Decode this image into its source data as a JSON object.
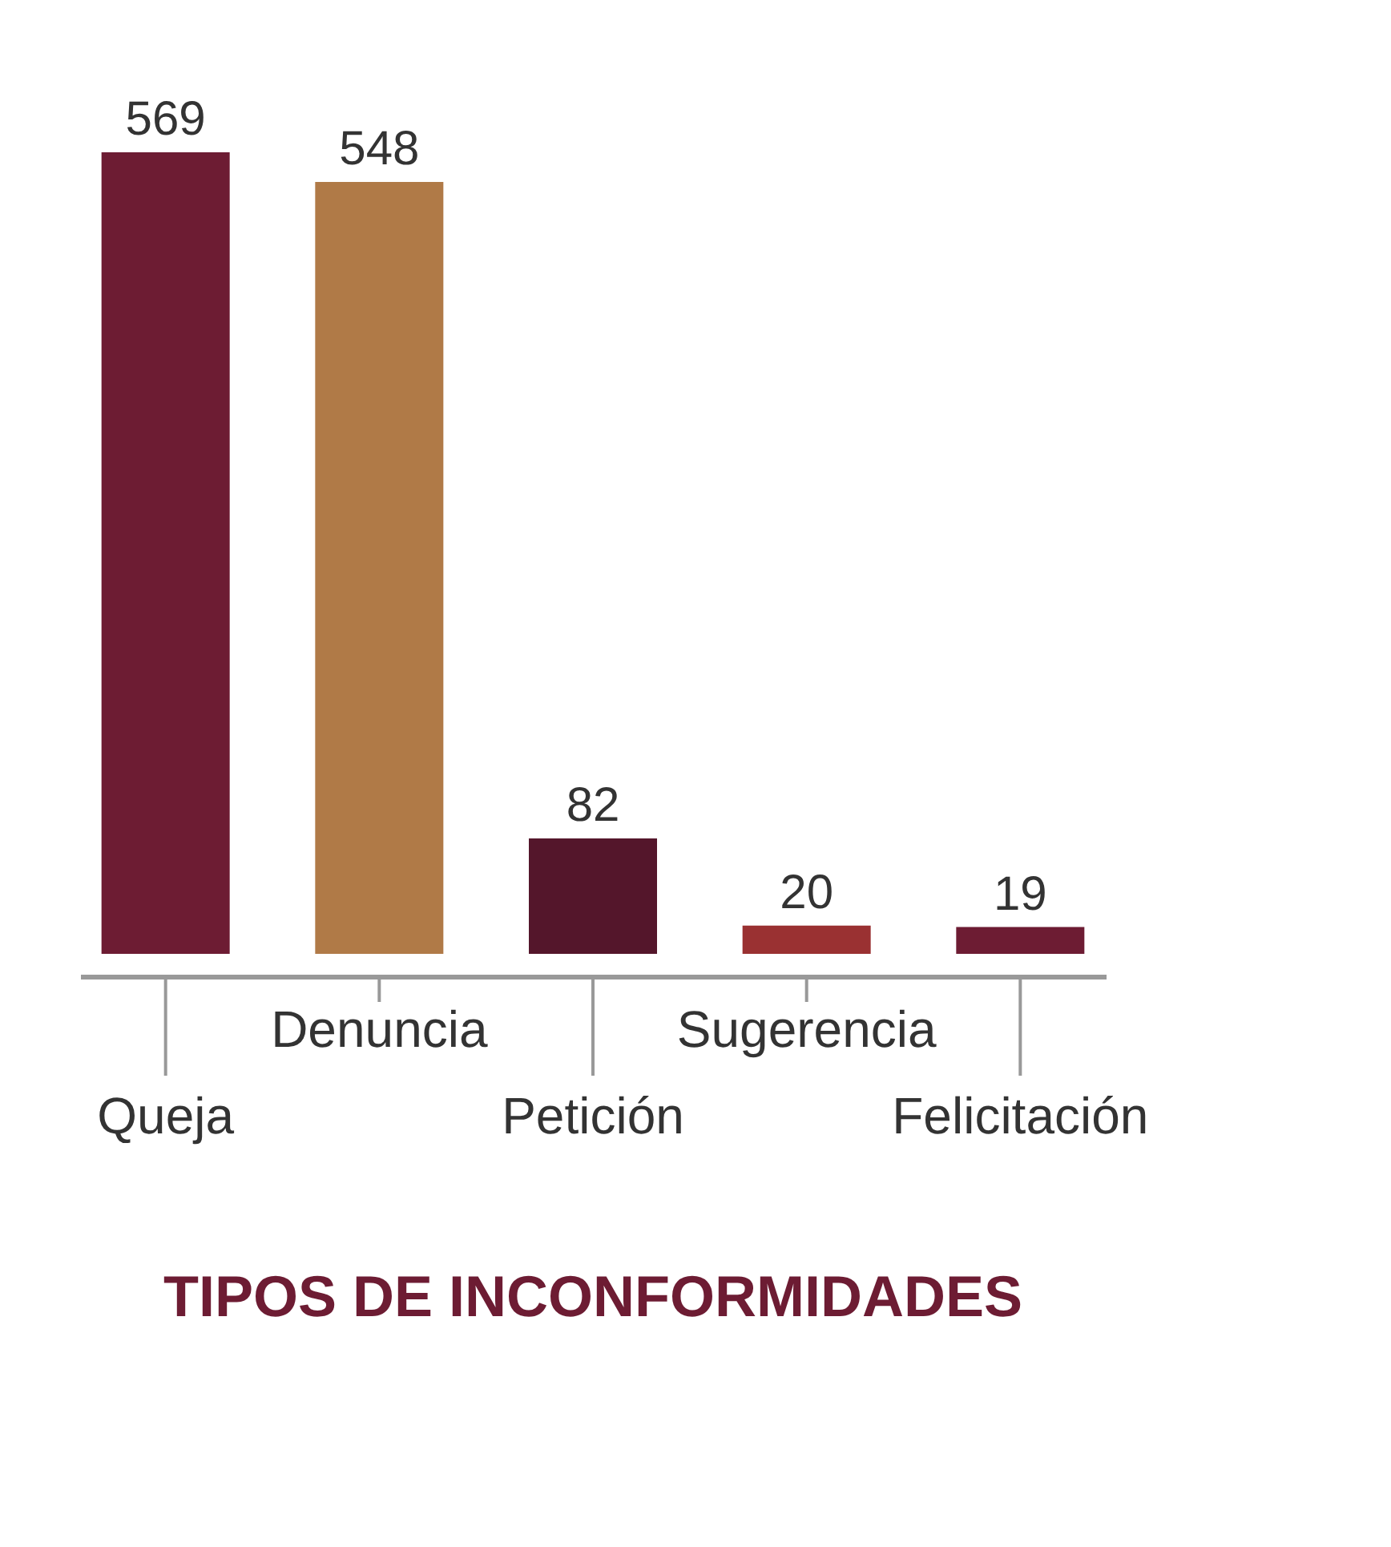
{
  "chart_data": {
    "type": "bar",
    "title": "TIPOS DE INCONFORMIDADES",
    "categories": [
      "Queja",
      "Denuncia",
      "Petición",
      "Sugerencia",
      "Felicitación"
    ],
    "values": [
      569,
      548,
      82,
      20,
      19
    ],
    "colors": [
      "#6d1c33",
      "#b07a47",
      "#54162b",
      "#9a3132",
      "#6d1c33"
    ],
    "data_labels": true
  }
}
